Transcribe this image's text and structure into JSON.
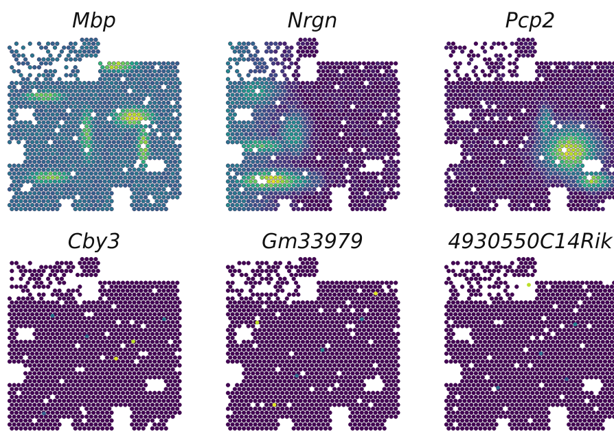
{
  "chart_data": [
    {
      "type": "scatter",
      "title": "Mbp",
      "description_of_values": "normalized expression 0-1",
      "colormap": "viridis",
      "hotspots": [
        {
          "name": "upper-right tract",
          "x": 0.72,
          "y": 0.45,
          "rx": 0.18,
          "ry": 0.08,
          "value": 0.95
        },
        {
          "name": "right descending tract",
          "x": 0.78,
          "y": 0.62,
          "rx": 0.05,
          "ry": 0.18,
          "value": 0.9
        },
        {
          "name": "left upper band",
          "x": 0.2,
          "y": 0.33,
          "rx": 0.18,
          "ry": 0.05,
          "value": 0.8
        },
        {
          "name": "center vertical tract",
          "x": 0.45,
          "y": 0.55,
          "rx": 0.06,
          "ry": 0.25,
          "value": 0.75
        },
        {
          "name": "lower left arc",
          "x": 0.23,
          "y": 0.8,
          "rx": 0.18,
          "ry": 0.05,
          "value": 0.85
        },
        {
          "name": "top right cap",
          "x": 0.62,
          "y": 0.15,
          "rx": 0.18,
          "ry": 0.05,
          "value": 0.9
        }
      ],
      "base_value": 0.35
    },
    {
      "type": "scatter",
      "title": "Nrgn",
      "colormap": "viridis",
      "hotspots": [
        {
          "name": "lower arc",
          "x": 0.25,
          "y": 0.82,
          "rx": 0.25,
          "ry": 0.07,
          "value": 0.95
        },
        {
          "name": "left mid band",
          "x": 0.18,
          "y": 0.62,
          "rx": 0.22,
          "ry": 0.06,
          "value": 0.7
        },
        {
          "name": "upper left folds",
          "x": 0.15,
          "y": 0.3,
          "rx": 0.2,
          "ry": 0.12,
          "value": 0.55
        },
        {
          "name": "center ridge",
          "x": 0.38,
          "y": 0.55,
          "rx": 0.1,
          "ry": 0.15,
          "value": 0.55
        }
      ],
      "base_value": 0.02,
      "left_gradient": true
    },
    {
      "type": "scatter",
      "title": "Pcp2",
      "colormap": "viridis",
      "hotspots": [
        {
          "name": "right central lobe",
          "x": 0.72,
          "y": 0.65,
          "rx": 0.18,
          "ry": 0.15,
          "value": 0.95
        },
        {
          "name": "right lower layer",
          "x": 0.85,
          "y": 0.82,
          "rx": 0.12,
          "ry": 0.06,
          "value": 0.85
        },
        {
          "name": "center strip",
          "x": 0.58,
          "y": 0.5,
          "rx": 0.05,
          "ry": 0.12,
          "value": 0.6
        }
      ],
      "base_value": 0.02
    },
    {
      "type": "scatter",
      "title": "Cby3",
      "colormap": "viridis",
      "hotspots": [],
      "base_value": 0.0,
      "sparse_spots": [
        {
          "x": 0.72,
          "y": 0.48,
          "value": 0.9
        },
        {
          "x": 0.62,
          "y": 0.58,
          "value": 0.95
        },
        {
          "x": 0.25,
          "y": 0.33,
          "value": 0.4
        },
        {
          "x": 0.9,
          "y": 0.35,
          "value": 0.4
        },
        {
          "x": 0.45,
          "y": 0.45,
          "value": 0.35
        },
        {
          "x": 0.2,
          "y": 0.9,
          "value": 0.3
        }
      ]
    },
    {
      "type": "scatter",
      "title": "Gm33979",
      "colormap": "viridis",
      "hotspots": [],
      "base_value": 0.0,
      "sparse_spots": [
        {
          "x": 0.86,
          "y": 0.2,
          "value": 0.95
        },
        {
          "x": 0.17,
          "y": 0.37,
          "value": 0.9
        },
        {
          "x": 0.27,
          "y": 0.85,
          "value": 0.95
        },
        {
          "x": 0.55,
          "y": 0.53,
          "value": 0.45
        },
        {
          "x": 0.78,
          "y": 0.35,
          "value": 0.4
        },
        {
          "x": 0.4,
          "y": 0.68,
          "value": 0.35
        }
      ]
    },
    {
      "type": "scatter",
      "title": "4930550C14Rik",
      "colormap": "viridis",
      "hotspots": [],
      "base_value": 0.0,
      "sparse_spots": [
        {
          "x": 0.48,
          "y": 0.15,
          "value": 0.9
        },
        {
          "x": 0.75,
          "y": 0.38,
          "value": 0.45
        },
        {
          "x": 0.55,
          "y": 0.55,
          "value": 0.35
        },
        {
          "x": 0.3,
          "y": 0.75,
          "value": 0.35
        },
        {
          "x": 0.7,
          "y": 0.7,
          "value": 0.3
        }
      ]
    }
  ]
}
